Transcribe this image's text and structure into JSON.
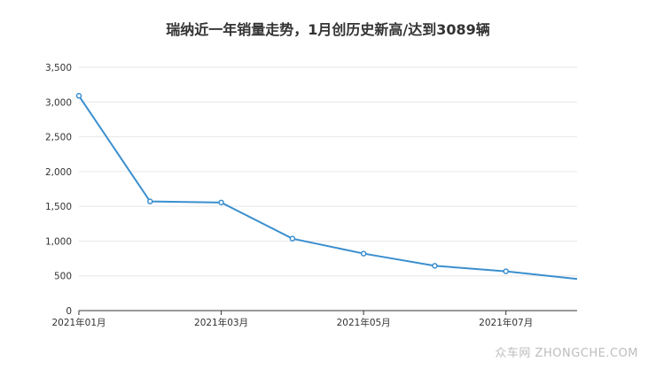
{
  "chart_data": {
    "type": "line",
    "title": "瑞纳近一年销量走势，1月创历史新高/达到3089辆",
    "x": [
      "2021年01月",
      "2021年02月",
      "2021年03月",
      "2021年04月",
      "2021年05月",
      "2021年06月",
      "2021年07月",
      "2021年08月"
    ],
    "x_tick_labels": [
      "2021年01月",
      "2021年03月",
      "2021年05月",
      "2021年07月"
    ],
    "series": [
      {
        "values": [
          3089,
          1570,
          1555,
          1035,
          820,
          645,
          565,
          455
        ]
      }
    ],
    "ylim": [
      0,
      3500
    ],
    "y_tick_labels": [
      "0",
      "500",
      "1,000",
      "1,500",
      "2,000",
      "2,500",
      "3,000",
      "3,500"
    ],
    "grid": true,
    "line_color": "#3a8fcf"
  },
  "watermark": "众车网 ZHONGCHE.COM"
}
